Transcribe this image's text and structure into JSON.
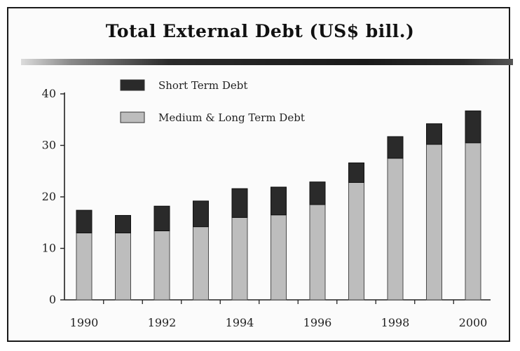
{
  "chart_data": {
    "type": "bar",
    "stacked": true,
    "title": "Total External Debt (US$ bill.)",
    "xlabel": "",
    "ylabel": "",
    "categories": [
      "1990",
      "1991",
      "1992",
      "1993",
      "1994",
      "1995",
      "1996",
      "1997",
      "1998",
      "1999",
      "2000"
    ],
    "x_tick_labels": [
      "1990",
      "1992",
      "1994",
      "1996",
      "1998",
      "2000"
    ],
    "ylim": [
      0,
      40
    ],
    "y_ticks": [
      0,
      10,
      20,
      30,
      40
    ],
    "legend_position": "top-left",
    "grid": false,
    "series": [
      {
        "name": "Medium & Long Term Debt",
        "color": "#bdbdbd",
        "values": [
          13,
          13,
          13.4,
          14.2,
          16,
          16.5,
          18.5,
          22.8,
          27.5,
          30.2,
          30.5
        ]
      },
      {
        "name": "Short Term Debt",
        "color": "#2a2a2a",
        "values": [
          4.4,
          3.4,
          4.8,
          5,
          5.6,
          5.4,
          4.4,
          3.8,
          4.2,
          4,
          6.2
        ]
      }
    ]
  }
}
